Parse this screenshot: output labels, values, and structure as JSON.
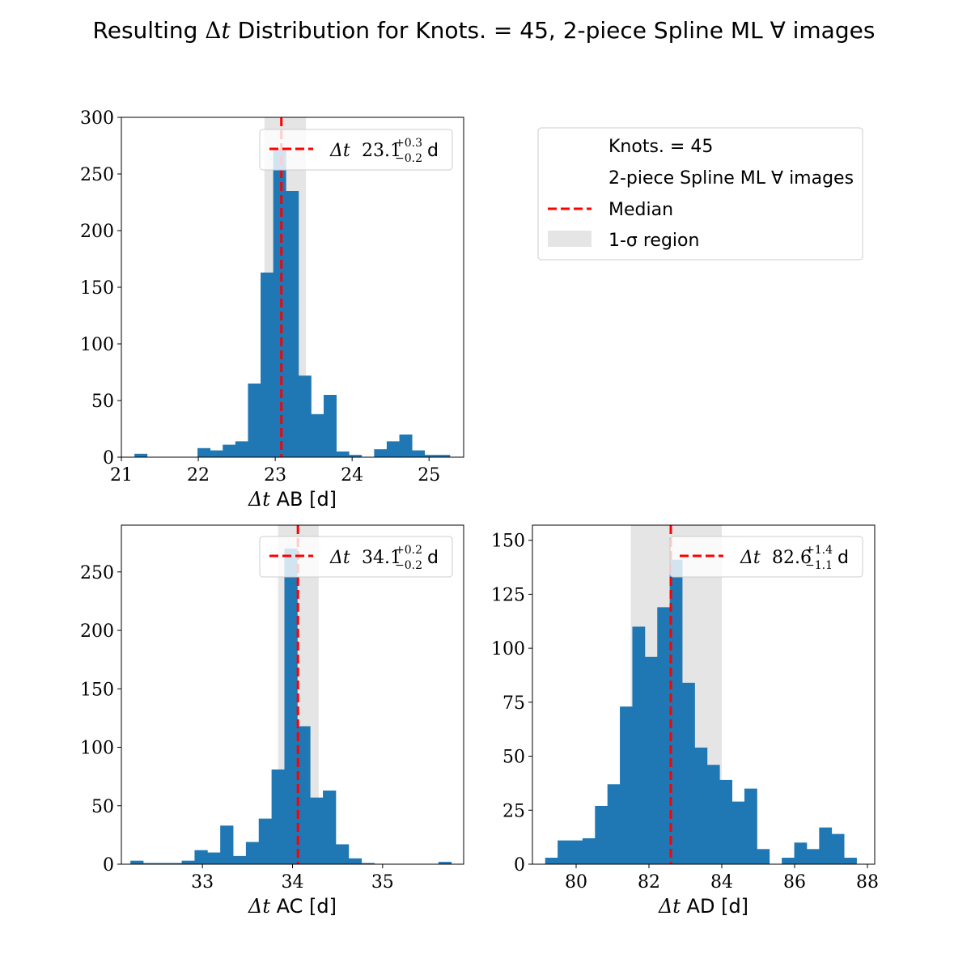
{
  "figure_title": {
    "prefix": "Resulting ",
    "delta": "Δ",
    "t": "t",
    "suffix": " Distribution for Knots. = 45, 2-piece Spline ML ∀ images"
  },
  "legend": {
    "items": [
      {
        "label": "Knots. = 45",
        "marker": "none"
      },
      {
        "label": "2-piece Spline ML ∀ images",
        "marker": "none"
      },
      {
        "label": "Median",
        "marker": "dashed-line",
        "color": "#ff0000"
      },
      {
        "label": "1-σ region",
        "marker": "patch",
        "color": "#e5e5e5"
      }
    ]
  },
  "colors": {
    "bar": "#1f77b4",
    "median": "#ff0000",
    "sigma_region": "#e5e5e5"
  },
  "chart_data": [
    {
      "type": "bar",
      "id": "AB",
      "xlabel": "Δt AB [d]",
      "xlabel_sym": "Δt",
      "xlabel_text": "AB [d]",
      "xlim": [
        21.0,
        25.45
      ],
      "ylim": [
        0,
        300
      ],
      "xticks": [
        21,
        22,
        23,
        24,
        25
      ],
      "yticks": [
        0,
        50,
        100,
        150,
        200,
        250,
        300
      ],
      "bin_start": 21.17,
      "bin_width": 0.164,
      "values": [
        3,
        0,
        0,
        0,
        0,
        8,
        6,
        11,
        14,
        65,
        163,
        272,
        235,
        72,
        38,
        55,
        5,
        2,
        0,
        7,
        14,
        20,
        6,
        2,
        2
      ],
      "median": 23.08,
      "sigma_region": [
        22.86,
        23.4
      ],
      "annotation": {
        "sym": "Δt",
        "value": "23.1",
        "sup": "+0.3",
        "sub": "−0.2",
        "unit": "d"
      }
    },
    {
      "type": "bar",
      "id": "AC",
      "xlabel": "Δt AC [d]",
      "xlabel_sym": "Δt",
      "xlabel_text": "AC [d]",
      "xlim": [
        32.1,
        35.9
      ],
      "ylim": [
        0,
        290
      ],
      "xticks": [
        33,
        34,
        35
      ],
      "yticks": [
        0,
        50,
        100,
        150,
        200,
        250
      ],
      "bin_start": 32.2,
      "bin_width": 0.1425,
      "values": [
        3,
        1,
        1,
        1,
        3,
        12,
        10,
        33,
        7,
        19,
        39,
        81,
        270,
        118,
        57,
        63,
        17,
        5,
        1,
        0,
        0,
        0,
        0,
        0,
        2
      ],
      "median": 34.06,
      "sigma_region": [
        33.84,
        34.29
      ],
      "annotation": {
        "sym": "Δt",
        "value": "34.1",
        "sup": "+0.2",
        "sub": "−0.2",
        "unit": "d"
      }
    },
    {
      "type": "bar",
      "id": "AD",
      "xlabel": "Δt AD [d]",
      "xlabel_sym": "Δt",
      "xlabel_text": "AD [d]",
      "xlim": [
        78.8,
        88.2
      ],
      "ylim": [
        0,
        157
      ],
      "xticks": [
        80,
        82,
        84,
        86,
        88
      ],
      "yticks": [
        0,
        25,
        50,
        75,
        100,
        125,
        150
      ],
      "bin_start": 79.15,
      "bin_width": 0.342,
      "values": [
        3,
        11,
        11,
        12,
        27,
        37,
        73,
        110,
        96,
        119,
        141,
        84,
        54,
        46,
        39,
        29,
        35,
        7,
        0,
        3,
        10,
        7,
        17,
        14,
        3
      ],
      "median": 82.6,
      "sigma_region": [
        81.5,
        84.0
      ],
      "annotation": {
        "sym": "Δt",
        "value": "82.6",
        "sup": "+1.4",
        "sub": "−1.1",
        "unit": "d"
      }
    }
  ]
}
